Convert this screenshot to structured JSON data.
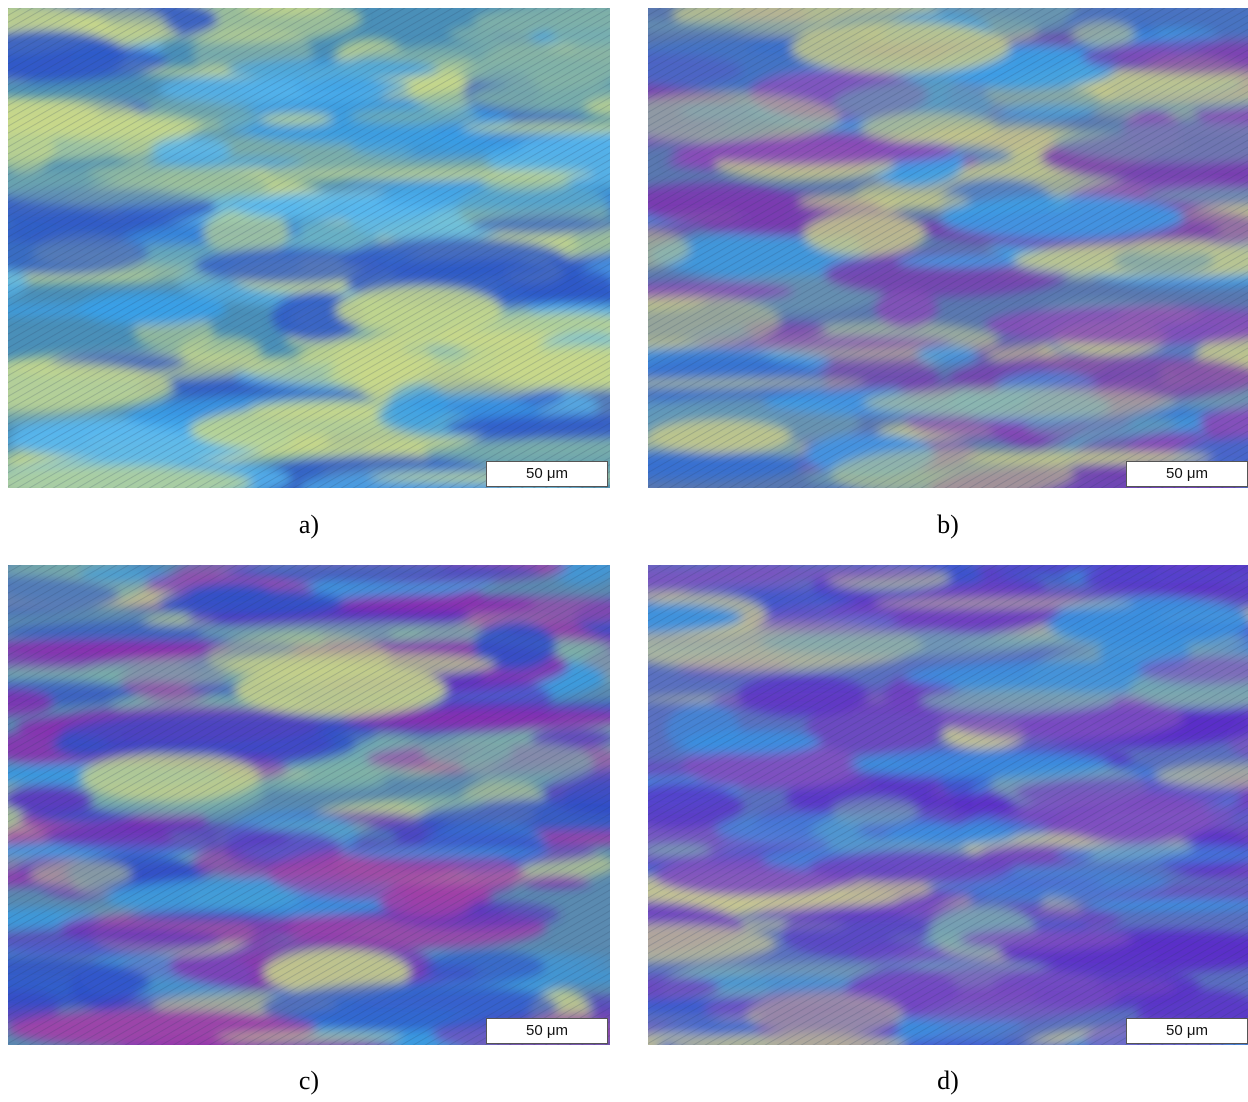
{
  "panels": [
    {
      "label": "a)",
      "scale_bar": "50 μm"
    },
    {
      "label": "b)",
      "scale_bar": "50 μm"
    },
    {
      "label": "c)",
      "scale_bar": "50 μm"
    },
    {
      "label": "d)",
      "scale_bar": "50 μm"
    }
  ]
}
